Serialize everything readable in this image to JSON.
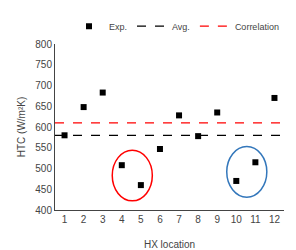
{
  "chart_data": {
    "type": "scatter",
    "xlabel": "HX location",
    "ylabel": "HTC (W/m²K)",
    "x": [
      1,
      2,
      3,
      4,
      5,
      6,
      7,
      8,
      9,
      10,
      11,
      12
    ],
    "series": [
      {
        "name": "Exp.",
        "type": "scatter",
        "marker": "square",
        "color": "black",
        "values": [
          580,
          648,
          683,
          508,
          460,
          547,
          628,
          578,
          635,
          470,
          515,
          670
        ]
      }
    ],
    "reference_lines": [
      {
        "name": "Avg.",
        "value": 580,
        "color": "black",
        "line_style": "dash"
      },
      {
        "name": "Correlation",
        "value": 610,
        "color": "red",
        "line_style": "dash"
      }
    ],
    "ellipses": [
      {
        "center": [
          4.55,
          483
        ],
        "width": 2.1,
        "height": 122,
        "color": "red"
      },
      {
        "center": [
          10.55,
          492
        ],
        "width": 2.1,
        "height": 122,
        "color": "#3377bb"
      }
    ],
    "xlim": [
      0.5,
      12.5
    ],
    "ylim": [
      400,
      800
    ],
    "xticks": [
      1,
      2,
      3,
      4,
      5,
      6,
      7,
      8,
      9,
      10,
      11,
      12
    ],
    "yticks": [
      400,
      450,
      500,
      550,
      600,
      650,
      700,
      750,
      800
    ],
    "grid": false,
    "legend": "upper right"
  }
}
